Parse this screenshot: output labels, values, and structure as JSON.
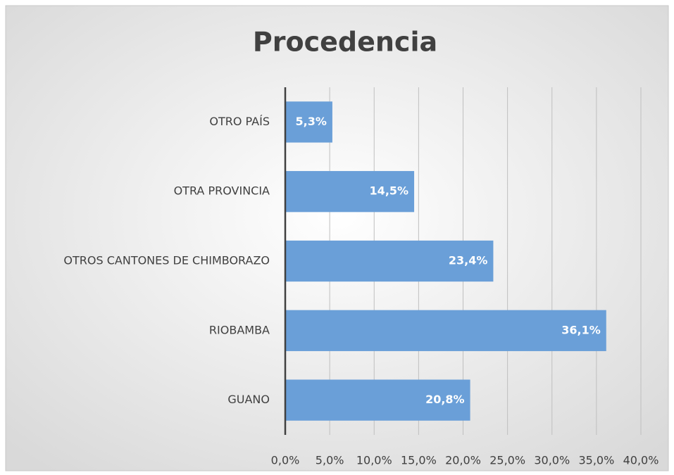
{
  "chart_data": {
    "type": "bar",
    "orientation": "horizontal",
    "title": "Procedencia",
    "categories": [
      "OTRO PAÍS",
      "OTRA PROVINCIA",
      "OTROS CANTONES DE CHIMBORAZO",
      "RIOBAMBA",
      "GUANO"
    ],
    "values": [
      5.3,
      14.5,
      23.4,
      36.1,
      20.8
    ],
    "value_labels": [
      "5,3%",
      "14,5%",
      "23,4%",
      "36,1%",
      "20,8%"
    ],
    "color": "#6a9fd8",
    "xlim": [
      0,
      40
    ],
    "xticks": [
      {
        "value": 0,
        "label": "0,0%"
      },
      {
        "value": 5,
        "label": "5,0%"
      },
      {
        "value": 10,
        "label": "10,0%"
      },
      {
        "value": 15,
        "label": "15,0%"
      },
      {
        "value": 20,
        "label": "20,0%"
      },
      {
        "value": 25,
        "label": "25,0%"
      },
      {
        "value": 30,
        "label": "30,0%"
      },
      {
        "value": 35,
        "label": "35,0%"
      },
      {
        "value": 40,
        "label": "40,0%"
      }
    ],
    "grid": true
  }
}
